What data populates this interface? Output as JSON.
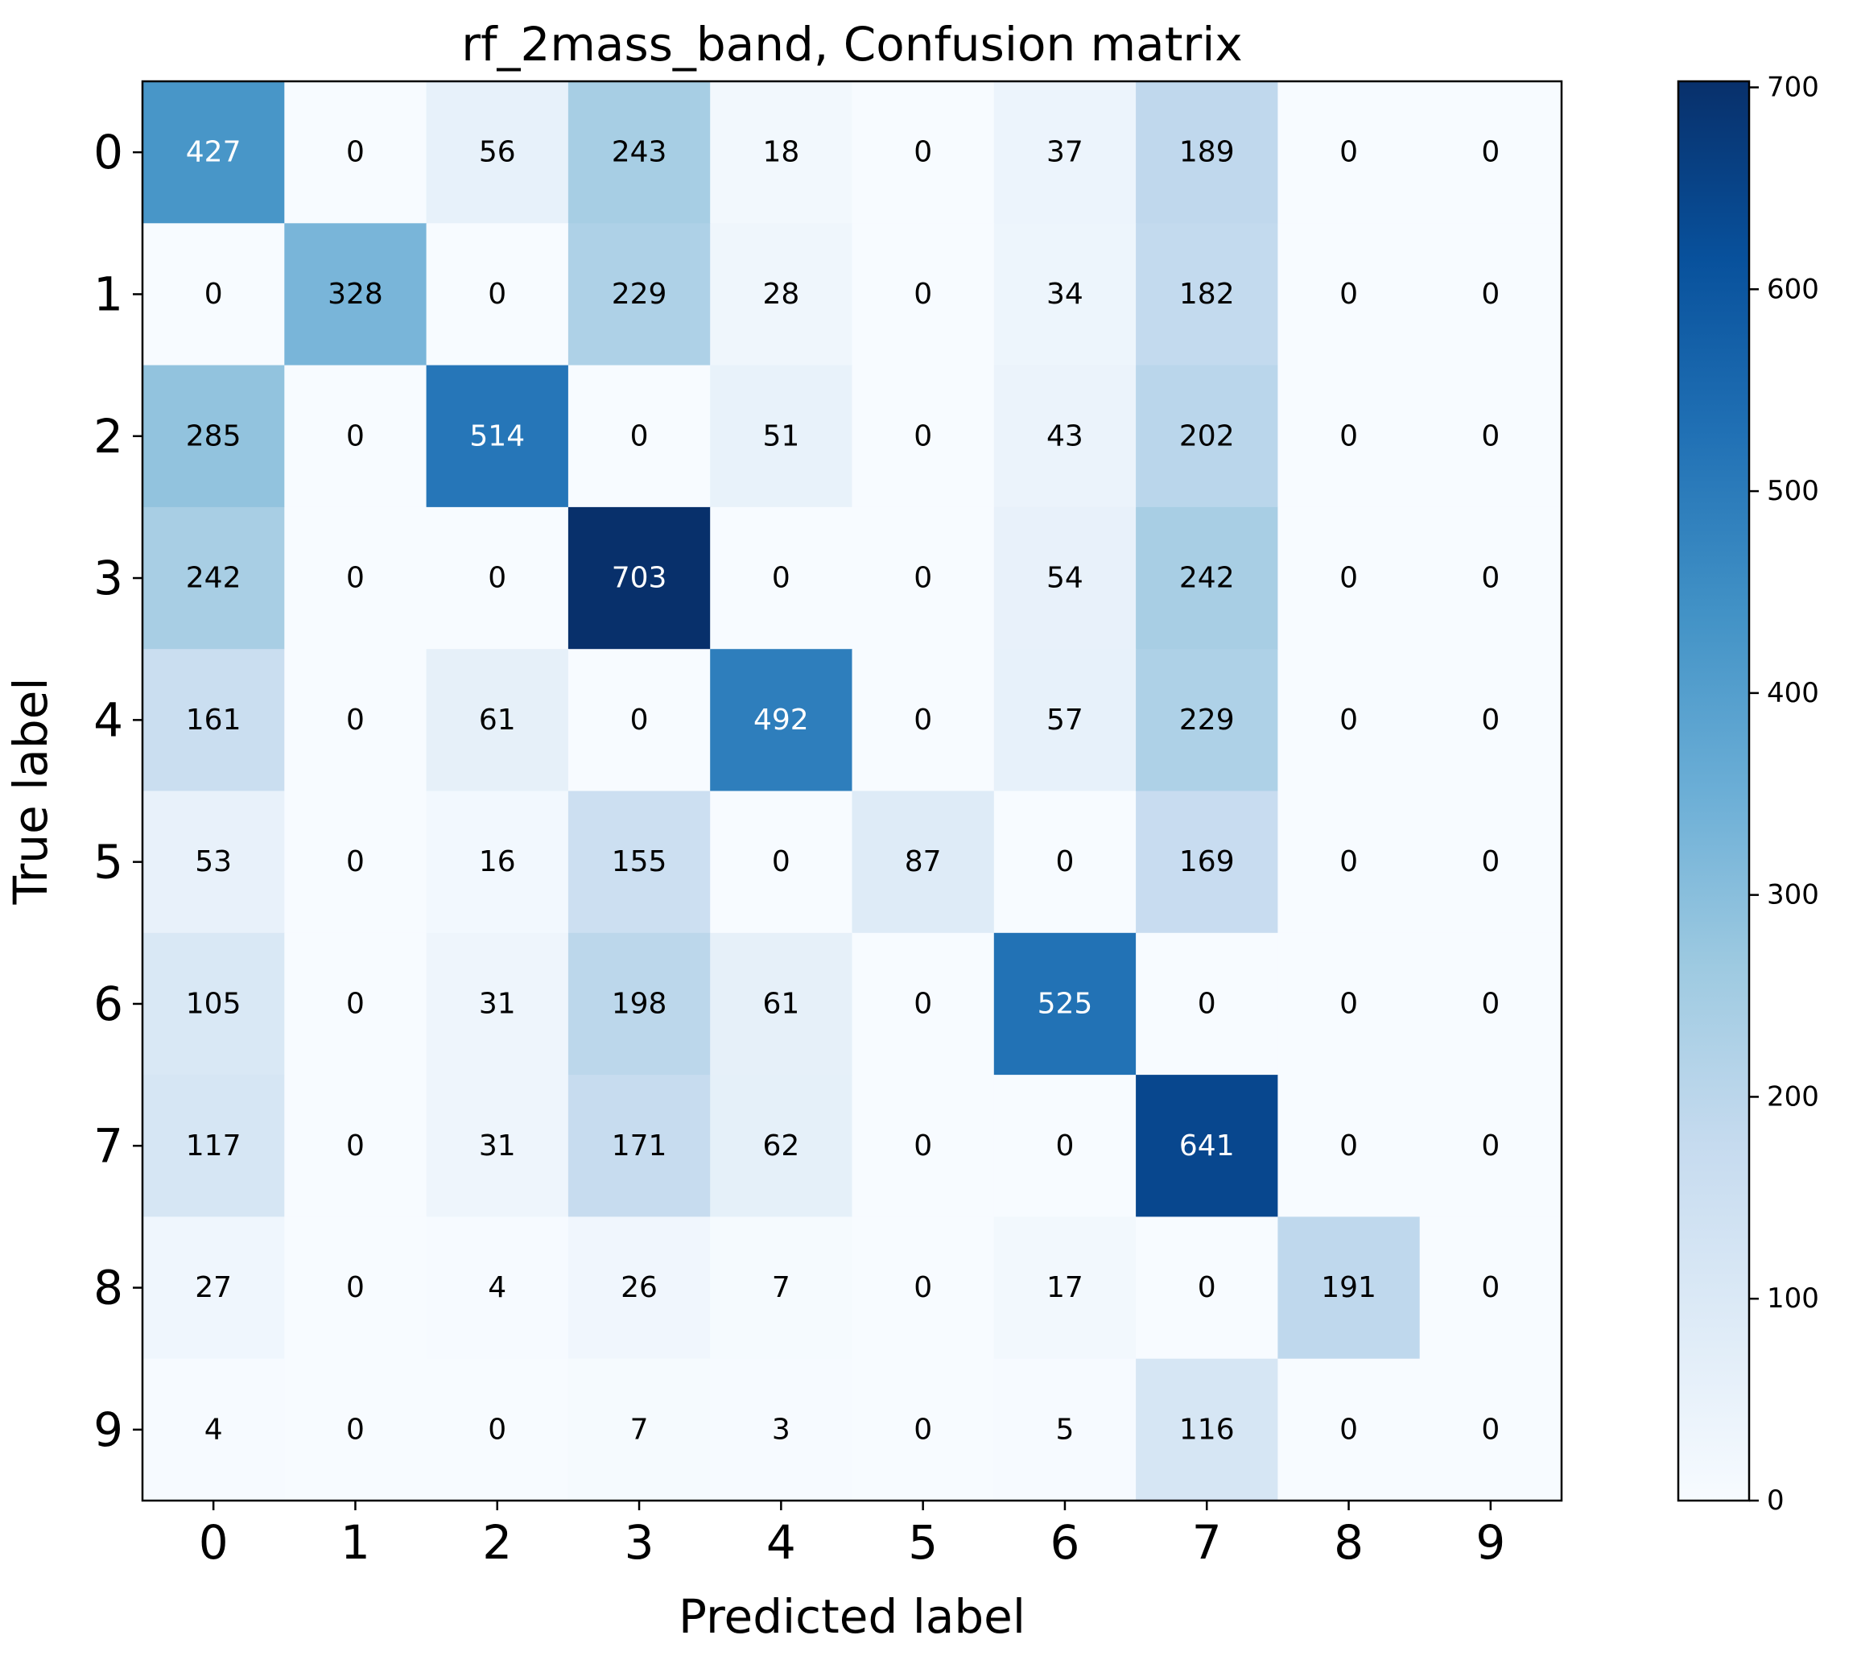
{
  "chart_data": {
    "type": "heatmap",
    "title": "rf_2mass_band, Confusion matrix",
    "xlabel": "Predicted label",
    "ylabel": "True label",
    "x_categories": [
      "0",
      "1",
      "2",
      "3",
      "4",
      "5",
      "6",
      "7",
      "8",
      "9"
    ],
    "y_categories": [
      "0",
      "1",
      "2",
      "3",
      "4",
      "5",
      "6",
      "7",
      "8",
      "9"
    ],
    "values": [
      [
        427,
        0,
        56,
        243,
        18,
        0,
        37,
        189,
        0,
        0
      ],
      [
        0,
        328,
        0,
        229,
        28,
        0,
        34,
        182,
        0,
        0
      ],
      [
        285,
        0,
        514,
        0,
        51,
        0,
        43,
        202,
        0,
        0
      ],
      [
        242,
        0,
        0,
        703,
        0,
        0,
        54,
        242,
        0,
        0
      ],
      [
        161,
        0,
        61,
        0,
        492,
        0,
        57,
        229,
        0,
        0
      ],
      [
        53,
        0,
        16,
        155,
        0,
        87,
        0,
        169,
        0,
        0
      ],
      [
        105,
        0,
        31,
        198,
        61,
        0,
        525,
        0,
        0,
        0
      ],
      [
        117,
        0,
        31,
        171,
        62,
        0,
        0,
        641,
        0,
        0
      ],
      [
        27,
        0,
        4,
        26,
        7,
        0,
        17,
        0,
        191,
        0
      ],
      [
        4,
        0,
        0,
        7,
        3,
        0,
        5,
        116,
        0,
        0
      ]
    ],
    "colormap": "Blues",
    "colormap_stops": [
      "#f7fbff",
      "#deebf7",
      "#c6dbef",
      "#9ecae1",
      "#6baed6",
      "#4292c6",
      "#2171b5",
      "#08519c",
      "#08306b"
    ],
    "color_range": [
      0,
      703
    ],
    "colorbar_ticks": [
      "0",
      "100",
      "200",
      "300",
      "400",
      "500",
      "600",
      "700"
    ],
    "colorbar_tick_values": [
      0,
      100,
      200,
      300,
      400,
      500,
      600,
      700
    ],
    "text_color_dark": "#000000",
    "text_color_light": "#ffffff",
    "grid": false,
    "legend": "colorbar-right"
  }
}
